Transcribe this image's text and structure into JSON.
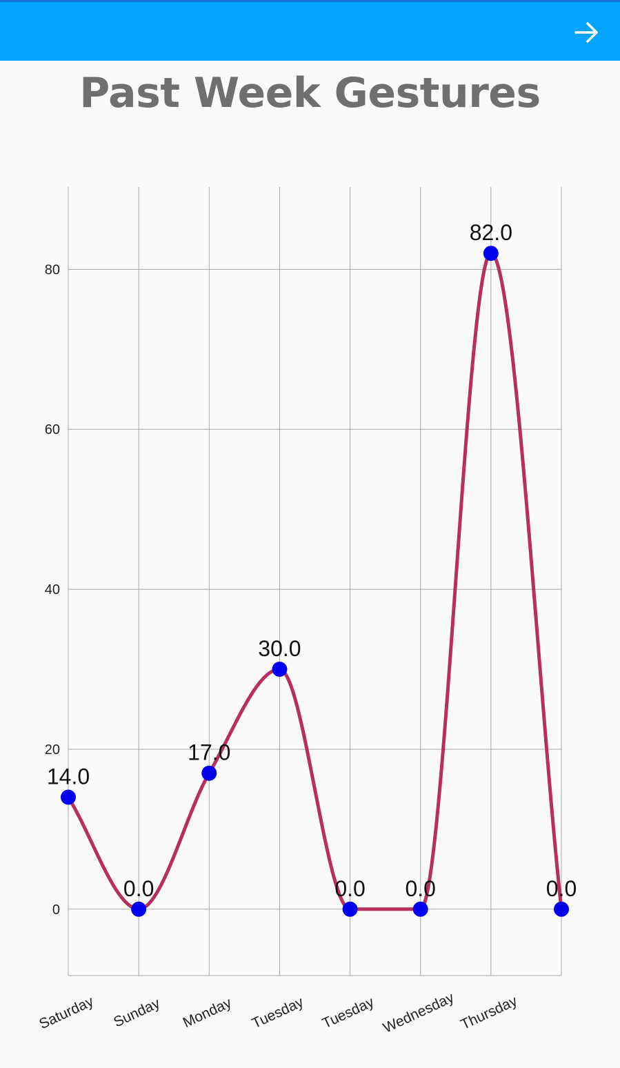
{
  "app_bar": {
    "color": "#02a3fb",
    "action_icon": "arrow-right-icon"
  },
  "title": "Past Week Gestures",
  "chart_data": {
    "type": "line",
    "title": "Past Week Gestures",
    "xlabel": "",
    "ylabel": "",
    "categories": [
      "Saturday",
      "Sunday",
      "Monday",
      "Tuesday",
      "Tuesday",
      "Wednesday",
      "Thursday",
      ""
    ],
    "series": [
      {
        "values": [
          14.0,
          0.0,
          17.0,
          30.0,
          0.0,
          0.0,
          82.0,
          0.0
        ],
        "value_labels": [
          "14.0",
          "0.0",
          "17.0",
          "30.0",
          "0.0",
          "0.0",
          "82.0",
          "0.0"
        ],
        "line_color": "#b8305a",
        "point_color": "#0000ee"
      }
    ],
    "y_ticks": [
      0,
      20,
      40,
      60,
      80
    ],
    "ylim": [
      -8.3,
      90.3
    ],
    "grid": true,
    "smooth": true,
    "x_label_rotation_deg": -25
  }
}
